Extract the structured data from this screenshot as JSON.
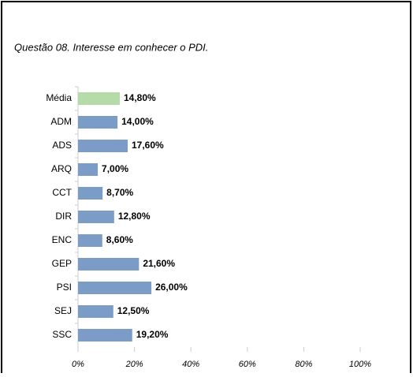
{
  "chart_data": {
    "type": "bar",
    "orientation": "horizontal",
    "title": "Questão 08. Interesse em conhecer o PDI.",
    "categories": [
      "Média",
      "ADM",
      "ADS",
      "ARQ",
      "CCT",
      "DIR",
      "ENC",
      "GEP",
      "PSI",
      "SEJ",
      "SSC"
    ],
    "values": [
      14.8,
      14.0,
      17.6,
      7.0,
      8.7,
      12.8,
      8.6,
      21.6,
      26.0,
      12.5,
      19.2
    ],
    "value_labels": [
      "14,80%",
      "14,00%",
      "17,60%",
      "7,00%",
      "8,70%",
      "12,80%",
      "8,60%",
      "21,60%",
      "26,00%",
      "12,50%",
      "19,20%"
    ],
    "colors": [
      "#b5dba8",
      "#7a9cc6",
      "#7a9cc6",
      "#7a9cc6",
      "#7a9cc6",
      "#7a9cc6",
      "#7a9cc6",
      "#7a9cc6",
      "#7a9cc6",
      "#7a9cc6",
      "#7a9cc6"
    ],
    "xlim": [
      0,
      100
    ],
    "xticks": [
      {
        "value": 0,
        "label": "0%"
      },
      {
        "value": 20,
        "label": "20%"
      },
      {
        "value": 40,
        "label": "40%"
      },
      {
        "value": 60,
        "label": "60%"
      },
      {
        "value": 80,
        "label": "80%"
      },
      {
        "value": 100,
        "label": "100%"
      }
    ],
    "grid": false
  }
}
